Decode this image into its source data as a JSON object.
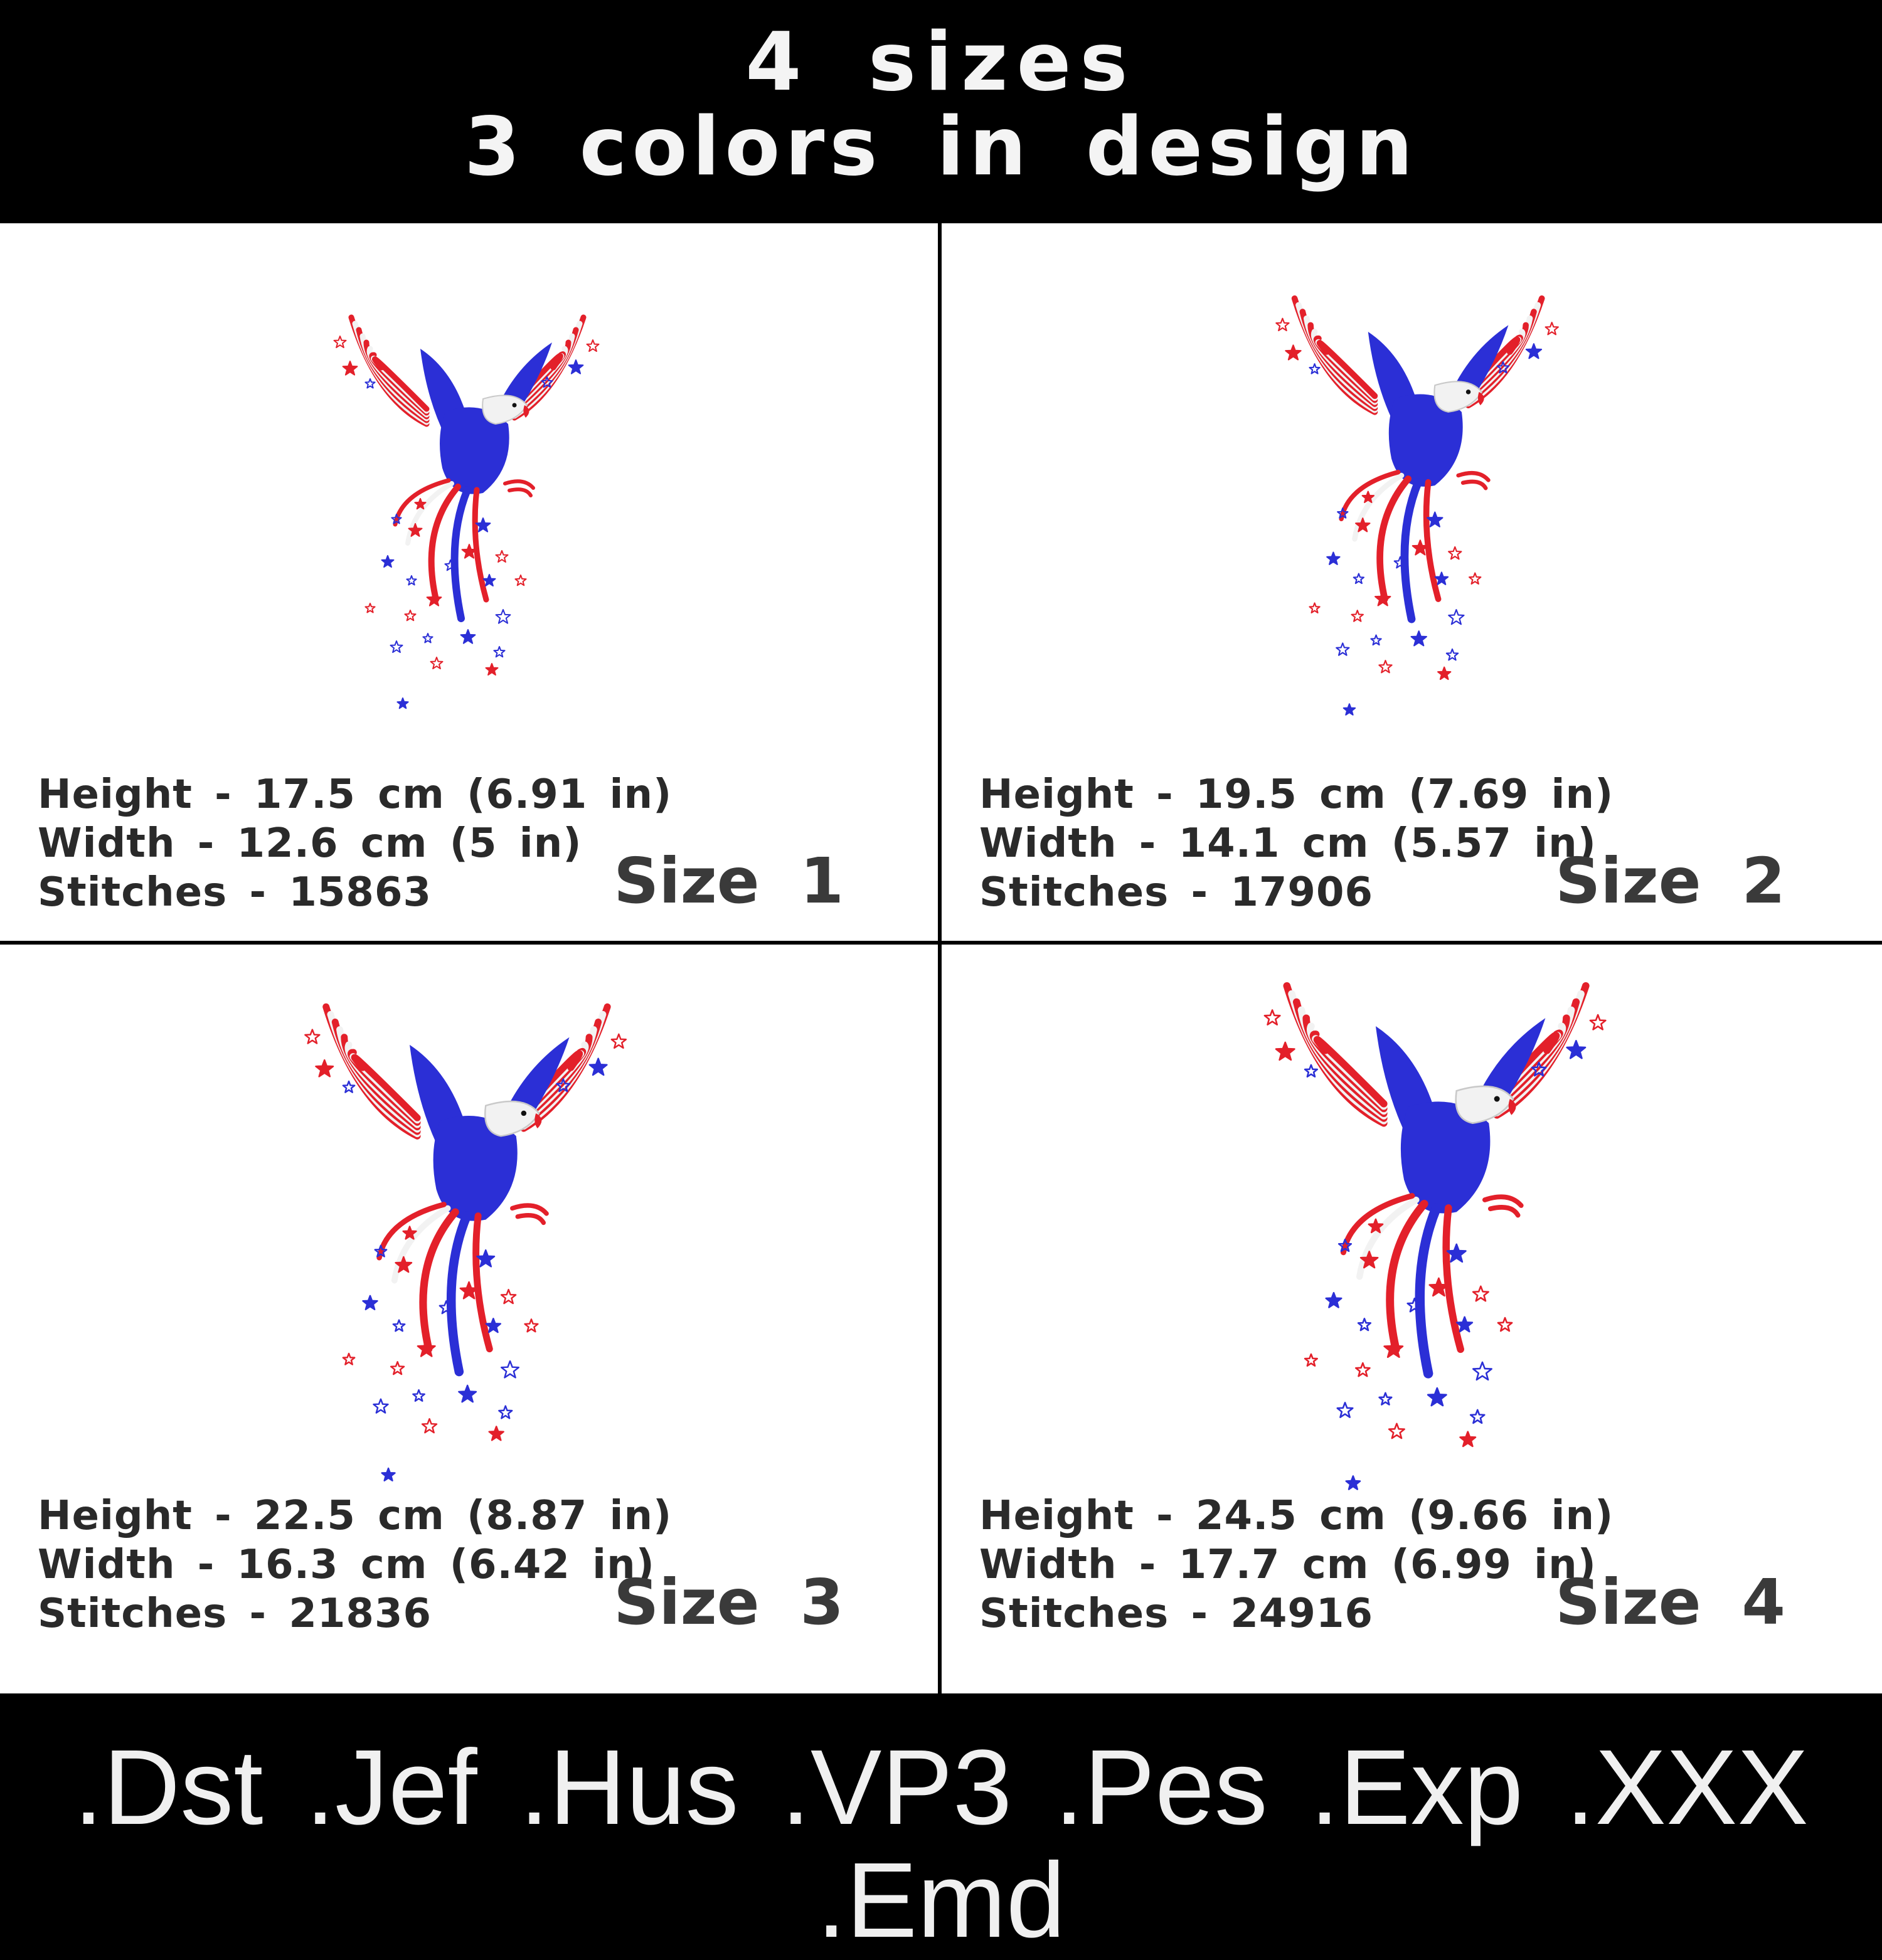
{
  "header": {
    "line1": "4 sizes",
    "line2": "3 colors in design"
  },
  "panels": [
    {
      "height": "Height - 17.5 cm (6.91 in)",
      "width": "Width - 12.6 cm (5 in)",
      "stitches": "Stitches - 15863",
      "size_label": "Size 1"
    },
    {
      "height": "Height - 19.5 cm (7.69 in)",
      "width": "Width - 14.1 cm (5.57 in)",
      "stitches": "Stitches - 17906",
      "size_label": "Size 2"
    },
    {
      "height": "Height - 22.5 cm (8.87 in)",
      "width": "Width - 16.3 cm (6.42 in)",
      "stitches": "Stitches - 21836",
      "size_label": "Size 3"
    },
    {
      "height": "Height - 24.5 cm (9.66 in)",
      "width": "Width - 17.7 cm (6.99 in)",
      "stitches": "Stitches - 24916",
      "size_label": "Size 4"
    }
  ],
  "footer": {
    "formats": ".Dst .Jef .Hus .VP3 .Pes .Exp .XXX .Emd"
  },
  "colors": {
    "red": "#e3202a",
    "blue": "#2b2fd6",
    "white": "#f2f2f2",
    "background": "#000000"
  }
}
